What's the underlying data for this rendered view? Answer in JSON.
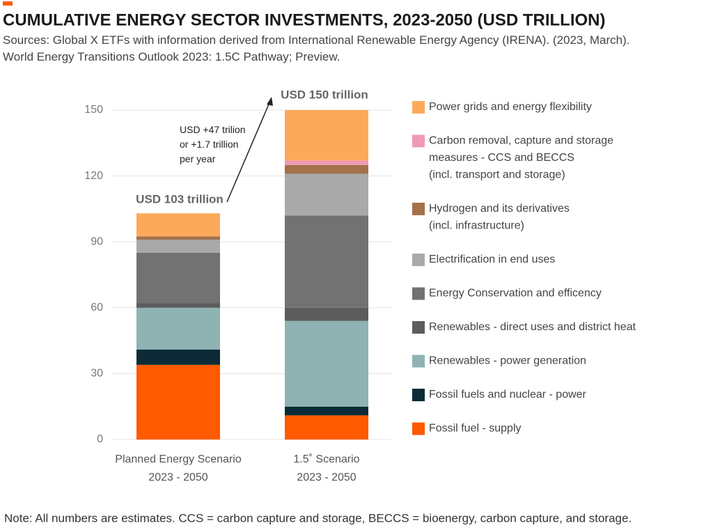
{
  "chart_data": {
    "type": "stacked_bar",
    "title": "CUMULATIVE ENERGY SECTOR INVESTMENTS, 2023-2050 (USD TRILLION)",
    "subtitle": "Sources: Global X ETFs with information derived from International Renewable Energy Agency (IRENA). (2023, March).\nWorld Energy Transitions Outlook 2023: 1.5C Pathway; Preview.",
    "note": "Note: All numbers are estimates. CCS = carbon capture and storage, BECCS = bioenergy, carbon capture, and storage.",
    "categories": [
      "Planned Energy Scenario\n2023 - 2050",
      "1.5˚ Scenario\n2023 - 2050"
    ],
    "series": [
      {
        "name": "Fossil fuel - supply",
        "color": "#ff5a00",
        "values": [
          34,
          11
        ]
      },
      {
        "name": "Fossil fuels and nuclear - power",
        "color": "#0d2b36",
        "values": [
          7,
          4
        ]
      },
      {
        "name": "Renewables - power generation",
        "color": "#8fb3b3",
        "values": [
          19,
          39
        ]
      },
      {
        "name": "Renewables - direct uses and district heat",
        "color": "#5c5c5c",
        "values": [
          2,
          6
        ]
      },
      {
        "name": "Energy Conservation and efficency",
        "color": "#727272",
        "values": [
          23,
          42
        ]
      },
      {
        "name": "Electrification in end uses",
        "color": "#a9a9a9",
        "values": [
          6,
          19
        ]
      },
      {
        "name": "Hydrogen and its derivatives\n(incl. infrastructure)",
        "color": "#a3714a",
        "values": [
          1.5,
          4
        ]
      },
      {
        "name": "Carbon removal, capture and storage\nmeasures - CCS and BECCS\n(incl. transport and storage)",
        "color": "#f09ab8",
        "values": [
          0,
          2
        ]
      },
      {
        "name": "Power grids and energy flexibility",
        "color": "#fcaa5a",
        "values": [
          10.5,
          23
        ]
      }
    ],
    "annotations": [
      "USD 103 trillion",
      "USD 150 trillion",
      "USD +47 trilion\nor +1.7 trillion\nper year"
    ],
    "ylim": [
      0,
      150
    ],
    "yticks": [
      0,
      30,
      60,
      90,
      120,
      150
    ],
    "grid": true
  }
}
